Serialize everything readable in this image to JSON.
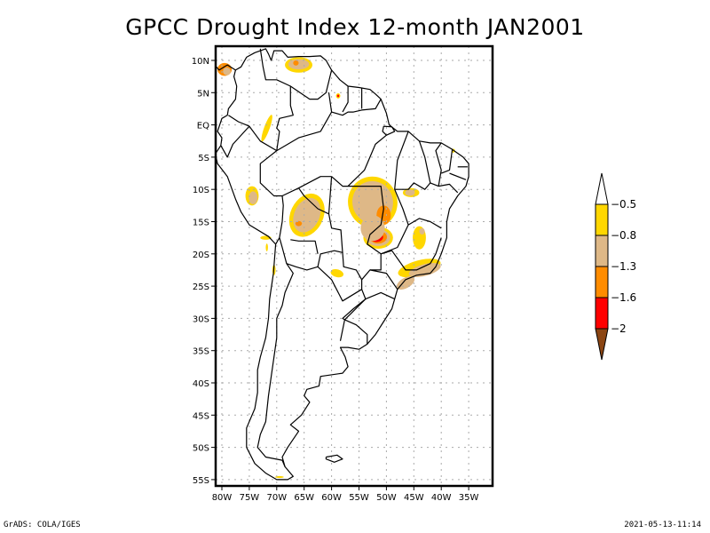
{
  "title": "GPCC Drought Index 12-month JAN2001",
  "map": {
    "region": "South America",
    "projection": "lat-lon",
    "lon_range": [
      -81,
      -31
    ],
    "lat_range": [
      12.5,
      -56
    ],
    "lat_ticks": [
      {
        "value": 10,
        "label": "10N"
      },
      {
        "value": 5,
        "label": "5N"
      },
      {
        "value": 0,
        "label": "EQ"
      },
      {
        "value": -5,
        "label": "5S"
      },
      {
        "value": -10,
        "label": "10S"
      },
      {
        "value": -15,
        "label": "15S"
      },
      {
        "value": -20,
        "label": "20S"
      },
      {
        "value": -25,
        "label": "25S"
      },
      {
        "value": -30,
        "label": "30S"
      },
      {
        "value": -35,
        "label": "35S"
      },
      {
        "value": -40,
        "label": "40S"
      },
      {
        "value": -45,
        "label": "45S"
      },
      {
        "value": -50,
        "label": "50S"
      },
      {
        "value": -55,
        "label": "55S"
      }
    ],
    "lon_ticks": [
      {
        "value": -80,
        "label": "80W"
      },
      {
        "value": -75,
        "label": "75W"
      },
      {
        "value": -70,
        "label": "70W"
      },
      {
        "value": -65,
        "label": "65W"
      },
      {
        "value": -60,
        "label": "60W"
      },
      {
        "value": -55,
        "label": "55W"
      },
      {
        "value": -50,
        "label": "50W"
      },
      {
        "value": -45,
        "label": "45W"
      },
      {
        "value": -40,
        "label": "40W"
      },
      {
        "value": -35,
        "label": "35W"
      }
    ],
    "grid": "dotted",
    "drought_regions": [
      {
        "name": "central-brazil-mato-grosso",
        "lon": -52.5,
        "lat": -12.5,
        "level": "-0.8 to -1.3",
        "core_level": "-1.3 to -1.6"
      },
      {
        "name": "mato-grosso-do-sul-goias",
        "lon": -51.5,
        "lat": -17.5,
        "level": "-1.6 to -2"
      },
      {
        "name": "bolivia-rondonia",
        "lon": -64.5,
        "lat": -14.5,
        "level": "-0.8 to -1.3",
        "core_level": "-1.3 to -1.6"
      },
      {
        "name": "peru-central",
        "lon": -74.5,
        "lat": -11.0,
        "level": "-0.8 to -1.3"
      },
      {
        "name": "venezuela-north",
        "lon": -66.0,
        "lat": 9.5,
        "level": "-0.8 to -1.3",
        "core_level": "-1.3 to -1.6"
      },
      {
        "name": "colombia-caribbean",
        "lon": -79.5,
        "lat": 8.5,
        "level": "-1.3 to -1.6"
      },
      {
        "name": "minas-gerais",
        "lon": -44.0,
        "lat": -17.5,
        "level": "-0.5 to -0.8"
      },
      {
        "name": "sao-paulo-rio",
        "lon": -44.0,
        "lat": -22.5,
        "level": "-0.8 to -1.3"
      },
      {
        "name": "bahia-west",
        "lon": -45.0,
        "lat": -11.0,
        "level": "-0.8 to -1.3"
      },
      {
        "name": "paraguay-chaco",
        "lon": -59.0,
        "lat": -23.0,
        "level": "-0.5 to -0.8"
      },
      {
        "name": "ecuador-colombia-andes",
        "lon": -71.5,
        "lat": -0.5,
        "level": "-0.5 to -0.8"
      }
    ]
  },
  "colorbar": {
    "labels": [
      "-0.5",
      "-0.8",
      "-1.3",
      "-1.6",
      "-2"
    ],
    "colors": {
      "above": "#ffffff",
      "band1": "#ffd700",
      "band2": "#deb887",
      "band3": "#ff8c00",
      "band4": "#ff0000",
      "below": "#8b4513"
    }
  },
  "footer": {
    "left": "GrADS: COLA/IGES",
    "right": "2021-05-13-11:14"
  }
}
